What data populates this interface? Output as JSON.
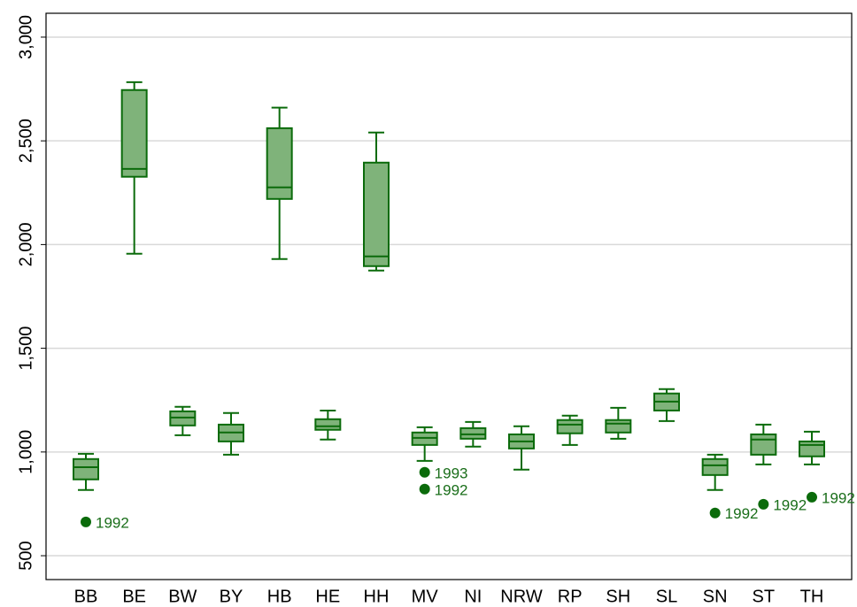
{
  "chart_data": {
    "type": "box",
    "categories": [
      "BB",
      "BE",
      "BW",
      "BY",
      "HB",
      "HE",
      "HH",
      "MV",
      "NI",
      "NRW",
      "RP",
      "SH",
      "SL",
      "SN",
      "ST",
      "TH"
    ],
    "whisker_low": [
      817,
      1956,
      1081,
      987,
      1930,
      1060,
      1875,
      957,
      1026,
      915,
      1034,
      1064,
      1149,
      817,
      940,
      940
    ],
    "q1": [
      868,
      2327,
      1128,
      1051,
      2220,
      1107,
      1896,
      1034,
      1064,
      1017,
      1090,
      1094,
      1200,
      889,
      987,
      979
    ],
    "median": [
      927,
      2365,
      1166,
      1094,
      2276,
      1124,
      1943,
      1068,
      1085,
      1051,
      1132,
      1137,
      1243,
      936,
      1060,
      1034
    ],
    "q3": [
      966,
      2745,
      1196,
      1132,
      2561,
      1158,
      2395,
      1094,
      1115,
      1085,
      1154,
      1154,
      1282,
      966,
      1085,
      1051
    ],
    "whisker_high": [
      991,
      2783,
      1218,
      1188,
      2660,
      1200,
      2540,
      1119,
      1145,
      1124,
      1175,
      1213,
      1303,
      987,
      1132,
      1098
    ],
    "outliers": [
      [
        {
          "value": 663,
          "label": "1992"
        }
      ],
      [],
      [],
      [],
      [],
      [],
      [],
      [
        {
          "value": 902,
          "label": "1993"
        },
        {
          "value": 821,
          "label": "1992"
        }
      ],
      [],
      [],
      [],
      [],
      [],
      [
        {
          "value": 706,
          "label": "1992"
        }
      ],
      [
        {
          "value": 748,
          "label": "1992"
        }
      ],
      [
        {
          "value": 782,
          "label": "1992"
        }
      ]
    ],
    "color": "#0b6b0b",
    "fill": "#7fb37a",
    "ylim": [
      385,
      3115
    ],
    "yticks": [
      {
        "value": 500,
        "label": "500"
      },
      {
        "value": 1000,
        "label": "1,000"
      },
      {
        "value": 1500,
        "label": "1,500"
      },
      {
        "value": 2000,
        "label": "2,000"
      },
      {
        "value": 2500,
        "label": "2,500"
      },
      {
        "value": 3000,
        "label": "3,000"
      }
    ],
    "grid": true
  }
}
